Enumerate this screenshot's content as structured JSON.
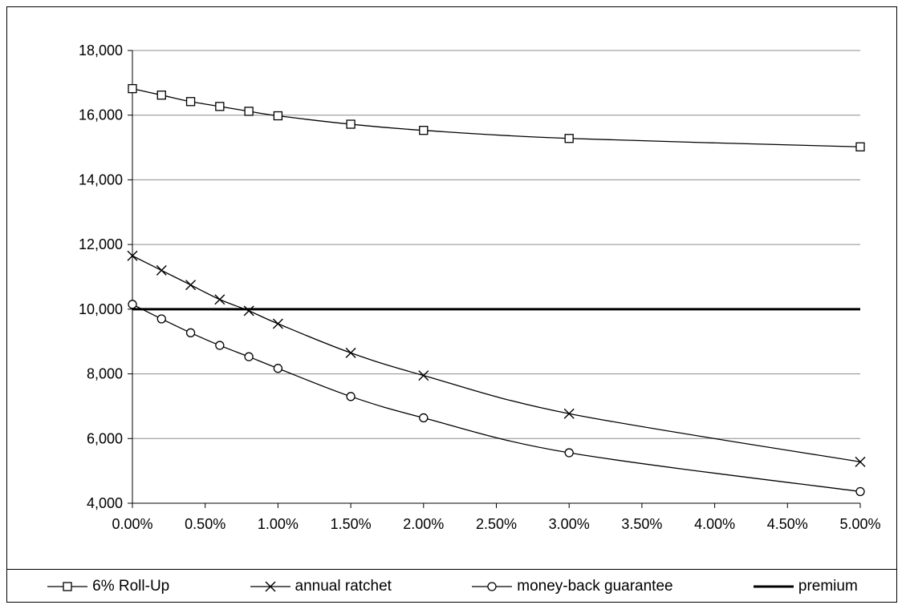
{
  "chart_data": {
    "type": "line",
    "title": "",
    "xlabel": "",
    "ylabel": "",
    "x": [
      0.0,
      0.2,
      0.4,
      0.6,
      0.8,
      1.0,
      1.5,
      2.0,
      3.0,
      5.0
    ],
    "x_tick_labels": [
      "0.00%",
      "0.50%",
      "1.00%",
      "1.50%",
      "2.00%",
      "2.50%",
      "3.00%",
      "3.50%",
      "4.00%",
      "4.50%",
      "5.00%"
    ],
    "xlim": [
      0,
      5
    ],
    "ylim": [
      4000,
      18000
    ],
    "y_tick_labels": [
      "4,000",
      "6,000",
      "8,000",
      "10,000",
      "12,000",
      "14,000",
      "16,000",
      "18,000"
    ],
    "grid": "horizontal",
    "legend_position": "bottom",
    "series": [
      {
        "name": "6% Roll-Up",
        "marker": "square",
        "values": [
          16820,
          16620,
          16420,
          16270,
          16120,
          15980,
          15720,
          15530,
          15280,
          15020
        ]
      },
      {
        "name": "annual ratchet",
        "marker": "x",
        "values": [
          11650,
          11200,
          10750,
          10300,
          9950,
          9550,
          8650,
          7950,
          6770,
          5280
        ]
      },
      {
        "name": "money-back guarantee",
        "marker": "circle",
        "values": [
          10150,
          9700,
          9270,
          8880,
          8530,
          8170,
          7300,
          6640,
          5560,
          4360
        ]
      },
      {
        "name": "premium",
        "marker": "none",
        "line_style": "thick",
        "values": [
          10000,
          10000,
          10000,
          10000,
          10000,
          10000,
          10000,
          10000,
          10000,
          10000
        ]
      }
    ]
  }
}
